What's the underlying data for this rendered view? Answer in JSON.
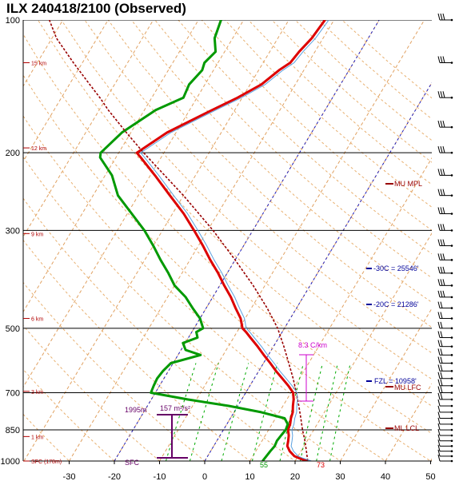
{
  "chart_data": {
    "type": "line",
    "title": "ILX  240418/2100  (Observed)",
    "xlabel": "",
    "ylabel": "",
    "y_scale": "log",
    "x_ticks": [
      -30,
      -20,
      -10,
      0,
      10,
      20,
      30,
      40,
      50
    ],
    "y_ticks": [
      100,
      200,
      300,
      500,
      700,
      850,
      1000
    ],
    "xlim": [
      -40,
      50
    ],
    "ylim": [
      1000,
      100
    ],
    "grid": true,
    "height_labels": [
      "15 km",
      "12 km",
      "9 km",
      "6 km",
      "3 km",
      "1 km",
      "SFC (178m)"
    ],
    "height_label_pressures": [
      125,
      195,
      305,
      475,
      695,
      880,
      1000
    ],
    "series": [
      {
        "name": "",
        "color": "#dd0000",
        "p": [
          1000,
          985,
          975,
          950,
          925,
          900,
          875,
          850,
          825,
          800,
          775,
          750,
          725,
          700,
          675,
          650,
          625,
          600,
          575,
          550,
          525,
          510,
          500,
          475,
          450,
          425,
          400,
          375,
          350,
          325,
          300,
          275,
          250,
          225,
          205,
          200,
          180,
          160,
          150,
          140,
          130,
          125,
          118,
          110,
          100
        ],
        "values": [
          22.8,
          20.5,
          19.2,
          17.5,
          16.3,
          15.8,
          15.2,
          14.3,
          14.0,
          13.4,
          13.0,
          12.2,
          11.5,
          10.5,
          8.5,
          6.2,
          3.8,
          1.5,
          -1.0,
          -3.5,
          -6.3,
          -8.0,
          -9.3,
          -11.0,
          -13.5,
          -16.0,
          -19.0,
          -22.0,
          -25.5,
          -29.0,
          -33.0,
          -37.5,
          -43.0,
          -49.0,
          -54.5,
          -56.0,
          -52.0,
          -45.0,
          -41.0,
          -37.5,
          -35.5,
          -34.0,
          -33.5,
          -32.5,
          -32.0
        ]
      },
      {
        "name": "",
        "color": "#009900",
        "p": [
          1000,
          975,
          950,
          925,
          900,
          875,
          850,
          825,
          800,
          775,
          750,
          725,
          700,
          675,
          650,
          625,
          600,
          575,
          560,
          540,
          525,
          510,
          500,
          475,
          450,
          425,
          400,
          375,
          350,
          325,
          300,
          275,
          250,
          225,
          205,
          200,
          180,
          160,
          150,
          140,
          130,
          125,
          118,
          110,
          100
        ],
        "values": [
          12.8,
          13.0,
          13.2,
          13.5,
          13.3,
          13.5,
          13.8,
          13.5,
          12.0,
          6.0,
          -2.0,
          -12.0,
          -21.0,
          -21.3,
          -21.5,
          -21.2,
          -20.5,
          -15.0,
          -19.0,
          -20.5,
          -18.0,
          -19.0,
          -18.0,
          -20.0,
          -23.0,
          -26.0,
          -30.0,
          -33.0,
          -36.5,
          -40.0,
          -44.0,
          -49.0,
          -54.5,
          -58.5,
          -63.5,
          -64.0,
          -62.0,
          -57.5,
          -53.0,
          -53.5,
          -52.5,
          -53.0,
          -52.0,
          -54.0,
          -55.0
        ]
      },
      {
        "name": "",
        "color": "#990000",
        "p": [
          1000,
          950,
          900,
          850,
          800,
          750,
          700,
          650,
          600,
          550,
          500,
          450,
          400,
          350,
          300,
          250,
          200,
          180,
          160,
          150,
          140,
          125,
          110,
          100
        ],
        "values": [
          22.8,
          21.2,
          19.5,
          17.5,
          15.6,
          13.5,
          11.2,
          8.6,
          5.6,
          2.3,
          -1.5,
          -6.5,
          -12.6,
          -20.0,
          -28.8,
          -40.0,
          -54.5,
          -61.0,
          -68.0,
          -71.5,
          -75.5,
          -82.0,
          -89.0,
          -93.0
        ]
      }
    ],
    "annotations": [
      {
        "text": "MU MPL",
        "p": 245,
        "color": "#990000"
      },
      {
        "text": "-30C = 25546'",
        "p": 385,
        "color": "#000099"
      },
      {
        "text": "-20C = 21286'",
        "p": 440,
        "color": "#000099"
      },
      {
        "text": "FZL = 10958'",
        "p": 655,
        "color": "#000099"
      },
      {
        "text": "MU LFC",
        "p": 680,
        "color": "#990000"
      },
      {
        "text": "ML LCL",
        "p": 838,
        "color": "#990000"
      },
      {
        "text": "8.3 C/km",
        "color": "#cc00cc"
      },
      {
        "text": "157 m²/s²",
        "color": "#660066"
      },
      {
        "text": "1995m",
        "color": "#660066"
      },
      {
        "text": "SFC",
        "color": "#660066"
      },
      {
        "text": "55",
        "color": "#009900"
      },
      {
        "text": "73",
        "color": "#dd0000"
      }
    ],
    "wind_barbs_present": true
  }
}
